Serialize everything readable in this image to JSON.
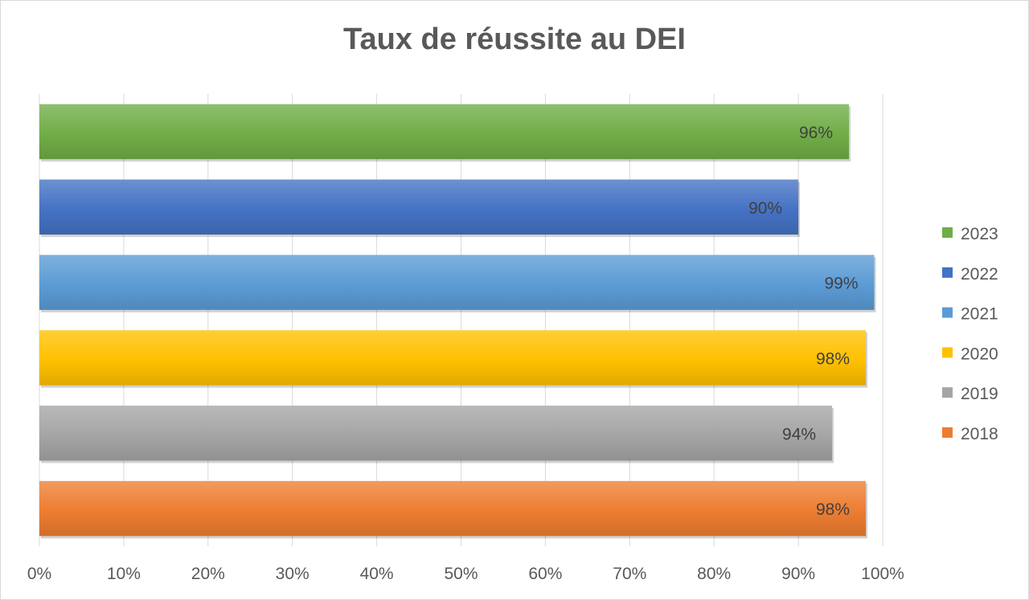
{
  "chart_data": {
    "type": "bar",
    "orientation": "horizontal",
    "title": "Taux de réussite au DEI",
    "xlabel": "",
    "ylabel": "",
    "xlim": [
      0,
      100
    ],
    "x_ticks": [
      "0%",
      "10%",
      "20%",
      "30%",
      "40%",
      "50%",
      "60%",
      "70%",
      "80%",
      "90%",
      "100%"
    ],
    "grid": true,
    "legend_position": "right",
    "series": [
      {
        "name": "2023",
        "value": 96,
        "label": "96%",
        "color": "#70ad47"
      },
      {
        "name": "2022",
        "value": 90,
        "label": "90%",
        "color": "#4472c4"
      },
      {
        "name": "2021",
        "value": 99,
        "label": "99%",
        "color": "#5b9bd5"
      },
      {
        "name": "2020",
        "value": 98,
        "label": "98%",
        "color": "#ffc000"
      },
      {
        "name": "2019",
        "value": 94,
        "label": "94%",
        "color": "#a5a5a5"
      },
      {
        "name": "2018",
        "value": 98,
        "label": "98%",
        "color": "#ed7d31"
      }
    ]
  }
}
